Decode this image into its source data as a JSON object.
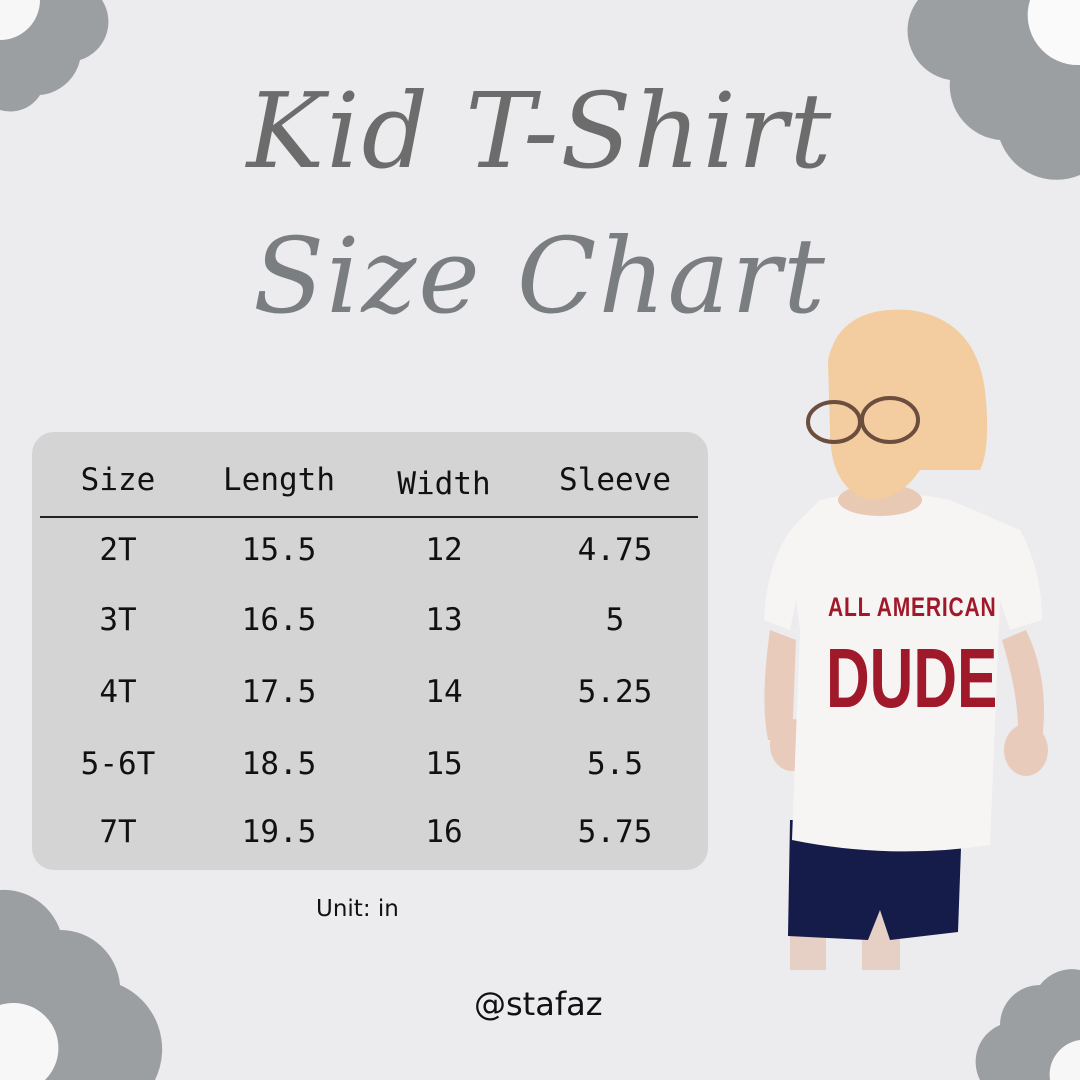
{
  "title": {
    "line1": "Kid T-Shirt",
    "line2": "Size Chart"
  },
  "table": {
    "headers": [
      "Size",
      "Length",
      "Width",
      "Sleeve"
    ],
    "rows": [
      [
        "2T",
        "15.5",
        "12",
        "4.75"
      ],
      [
        "3T",
        "16.5",
        "13",
        "5"
      ],
      [
        "4T",
        "17.5",
        "14",
        "5.25"
      ],
      [
        "5-6T",
        "18.5",
        "15",
        "5.5"
      ],
      [
        "7T",
        "19.5",
        "16",
        "5.75"
      ]
    ]
  },
  "unit_note": "Unit: in",
  "handle": "@stafaz",
  "photo": {
    "shirt_print_line1": "ALL AMERICAN",
    "shirt_print_line2": "DUDE"
  },
  "colors": {
    "background": "#ecebee",
    "panel": "#d4d4d4",
    "flower": "#9c9fa2",
    "title": "#6c6c6c",
    "print": "#a0192a"
  }
}
